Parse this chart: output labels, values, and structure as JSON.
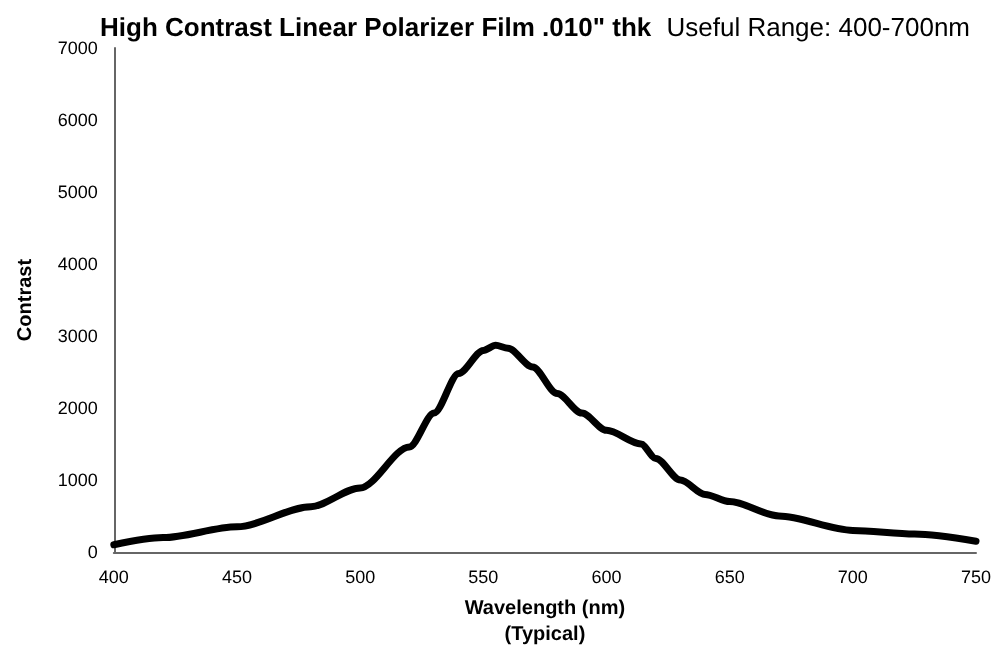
{
  "chart_data": {
    "type": "line",
    "title": "High Contrast Linear Polarizer Film .010\" thk",
    "subtitle": "Useful Range: 400-700nm",
    "xlabel": "Wavelength (nm)\n(Typical)",
    "ylabel": "Contrast",
    "x": [
      400,
      420,
      450,
      480,
      500,
      520,
      530,
      540,
      550,
      555,
      560,
      570,
      580,
      590,
      600,
      614,
      620,
      630,
      640,
      650,
      670,
      700,
      725,
      750
    ],
    "series": [
      {
        "color": "#000000",
        "values": [
          100,
          200,
          350,
          630,
          890,
          1460,
          1930,
          2480,
          2800,
          2870,
          2830,
          2570,
          2200,
          1930,
          1690,
          1500,
          1300,
          1000,
          800,
          700,
          500,
          300,
          250,
          150
        ]
      }
    ],
    "xlim": [
      400,
      750
    ],
    "xticks": [
      400,
      450,
      500,
      550,
      600,
      650,
      700,
      750
    ],
    "ylim": [
      0,
      7000
    ],
    "yticks": [
      0,
      1000,
      2000,
      3000,
      4000,
      5000,
      6000,
      7000
    ],
    "grid": false,
    "marker": "none",
    "line_style": "solid"
  }
}
